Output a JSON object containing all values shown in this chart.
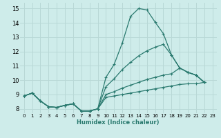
{
  "xlabel": "Humidex (Indice chaleur)",
  "bg_color": "#ceecea",
  "grid_color": "#b8d8d6",
  "line_color": "#2a7a6f",
  "xlim": [
    -0.5,
    23.5
  ],
  "ylim": [
    7.7,
    15.4
  ],
  "xtick_vals": [
    0,
    1,
    2,
    3,
    4,
    5,
    6,
    7,
    8,
    9,
    10,
    11,
    12,
    13,
    14,
    15,
    16,
    17,
    18,
    19,
    20,
    21,
    22,
    23
  ],
  "xtick_labels": [
    "0",
    "1",
    "2",
    "3",
    "4",
    "5",
    "6",
    "7",
    "8",
    "9",
    "10",
    "11",
    "12",
    "13",
    "14",
    "15",
    "16",
    "17",
    "18",
    "19",
    "20",
    "21",
    "22",
    "23"
  ],
  "ytick_vals": [
    8,
    9,
    10,
    11,
    12,
    13,
    14,
    15
  ],
  "ytick_labels": [
    "8",
    "9",
    "10",
    "11",
    "12",
    "13",
    "14",
    "15"
  ],
  "curve1_x": [
    0,
    1,
    2,
    3,
    4,
    5,
    6,
    7,
    8,
    9,
    10,
    11,
    12,
    13,
    14,
    15,
    16,
    17,
    18,
    19,
    20,
    21,
    22
  ],
  "curve1_y": [
    8.9,
    9.1,
    8.55,
    8.15,
    8.1,
    8.25,
    8.35,
    7.85,
    7.85,
    8.0,
    10.2,
    11.1,
    12.6,
    14.45,
    15.0,
    14.9,
    14.05,
    13.25,
    11.75,
    10.85,
    10.55,
    10.35,
    9.85
  ],
  "curve2_x": [
    0,
    1,
    2,
    3,
    4,
    5,
    6,
    7,
    8,
    9,
    10,
    11,
    12,
    13,
    14,
    15,
    16,
    17,
    18,
    19,
    20,
    21,
    22
  ],
  "curve2_y": [
    8.9,
    9.1,
    8.55,
    8.15,
    8.1,
    8.25,
    8.35,
    7.85,
    7.85,
    8.0,
    9.55,
    10.1,
    10.75,
    11.25,
    11.7,
    12.05,
    12.3,
    12.5,
    11.75,
    10.85,
    10.55,
    10.35,
    9.85
  ],
  "curve3_x": [
    0,
    1,
    2,
    3,
    4,
    5,
    6,
    7,
    8,
    9,
    10,
    11,
    12,
    13,
    14,
    15,
    16,
    17,
    18,
    19,
    20,
    21,
    22
  ],
  "curve3_y": [
    8.9,
    9.1,
    8.55,
    8.15,
    8.1,
    8.25,
    8.35,
    7.85,
    7.85,
    8.0,
    9.0,
    9.2,
    9.45,
    9.65,
    9.85,
    10.05,
    10.2,
    10.35,
    10.45,
    10.85,
    10.55,
    10.35,
    9.85
  ],
  "curve4_x": [
    0,
    1,
    2,
    3,
    4,
    5,
    6,
    7,
    8,
    9,
    10,
    11,
    12,
    13,
    14,
    15,
    16,
    17,
    18,
    19,
    20,
    21,
    22
  ],
  "curve4_y": [
    8.9,
    9.1,
    8.55,
    8.15,
    8.1,
    8.25,
    8.35,
    7.85,
    7.85,
    8.0,
    8.8,
    8.9,
    9.0,
    9.1,
    9.2,
    9.3,
    9.4,
    9.5,
    9.6,
    9.7,
    9.75,
    9.75,
    9.85
  ]
}
